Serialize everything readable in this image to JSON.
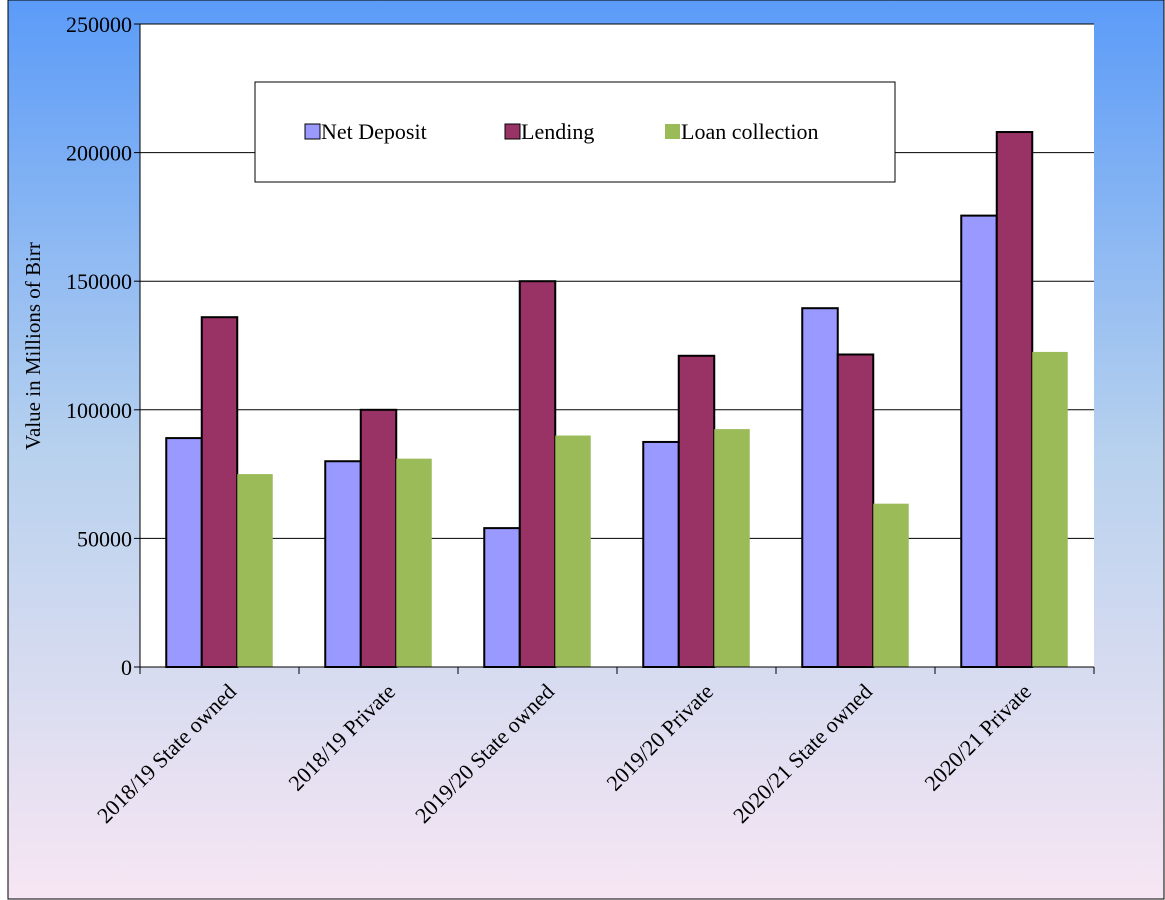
{
  "chart_data": {
    "type": "bar",
    "title": "",
    "xlabel": "",
    "ylabel": "Value in Millions of Birr",
    "ylim": [
      0,
      250000
    ],
    "yticks": [
      "0",
      "50000",
      "100000",
      "150000",
      "200000",
      "250000"
    ],
    "grid": true,
    "legend_position": "top-center",
    "categories": [
      "2018/19 State owned",
      "2018/19 Private",
      "2019/20 State owned",
      "2019/20 Private",
      "2020/21 State owned",
      "2020/21 Private"
    ],
    "series": [
      {
        "name": "Net Deposit",
        "color": "#9999ff",
        "values": [
          89000,
          80000,
          54000,
          87500,
          139500,
          175500
        ]
      },
      {
        "name": "Lending",
        "color": "#993366",
        "values": [
          136000,
          100000,
          150000,
          121000,
          121500,
          208000
        ]
      },
      {
        "name": "Loan collection",
        "color": "#9bbb59",
        "values": [
          75000,
          81000,
          90000,
          92500,
          63500,
          122500
        ]
      }
    ]
  }
}
